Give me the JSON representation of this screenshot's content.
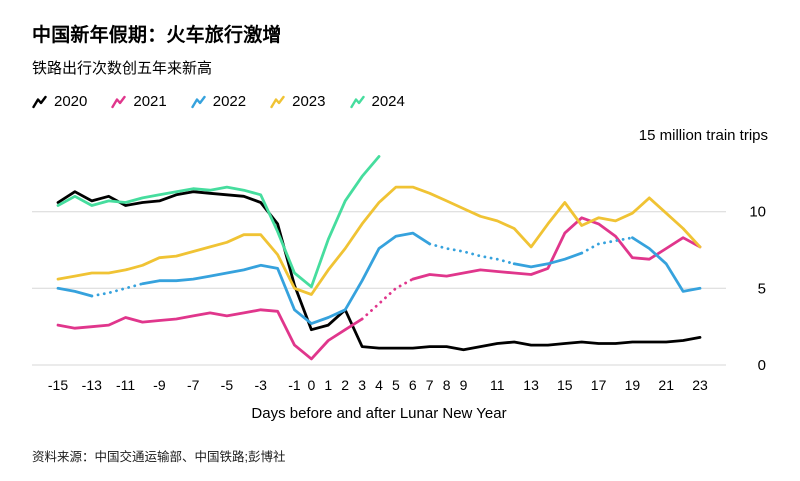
{
  "header": {
    "title": "中国新年假期：火车旅行激增",
    "subtitle": "铁路出行次数创五年来新高"
  },
  "axis_note": "15 million train trips",
  "xaxis_title": "Days before and after Lunar New Year",
  "source": "资料来源：中国交通运输部、中国铁路;彭博社",
  "colors": {
    "grid": "#d7d7d7",
    "s2020": "#000000",
    "s2021": "#e0368c",
    "s2022": "#36a2dd",
    "s2023": "#f0c334",
    "s2024": "#46dd9e"
  },
  "chart_data": {
    "type": "line",
    "title": "中国新年假期：火车旅行激增",
    "subtitle": "铁路出行次数创五年来新高",
    "xlabel": "Days before and after Lunar New Year",
    "ylabel": "million train trips",
    "ylim": [
      0,
      15
    ],
    "yticks": [
      0,
      5,
      10
    ],
    "grid": "horizontal",
    "legend_position": "top",
    "x": [
      -15,
      -14,
      -13,
      -12,
      -11,
      -10,
      -9,
      -8,
      -7,
      -6,
      -5,
      -4,
      -3,
      -2,
      -1,
      0,
      1,
      2,
      3,
      4,
      5,
      6,
      7,
      8,
      9,
      10,
      11,
      12,
      13,
      14,
      15,
      16,
      17,
      18,
      19,
      20,
      21,
      22,
      23
    ],
    "xticks": [
      -15,
      -13,
      -11,
      -9,
      -7,
      -5,
      -3,
      -1,
      0,
      1,
      2,
      3,
      4,
      5,
      6,
      7,
      8,
      9,
      11,
      13,
      15,
      17,
      19,
      21,
      23
    ],
    "series": [
      {
        "name": "2020",
        "color": "#000000",
        "values": [
          10.6,
          11.3,
          10.7,
          11.0,
          10.4,
          10.6,
          10.7,
          11.1,
          11.3,
          11.2,
          11.1,
          11.0,
          10.6,
          9.2,
          5.2,
          2.3,
          2.6,
          3.6,
          1.2,
          1.1,
          1.1,
          1.1,
          1.2,
          1.2,
          1.0,
          1.2,
          1.4,
          1.5,
          1.3,
          1.3,
          1.4,
          1.5,
          1.4,
          1.4,
          1.5,
          1.5,
          1.5,
          1.6,
          1.8
        ]
      },
      {
        "name": "2021",
        "color": "#e0368c",
        "values": [
          2.6,
          2.4,
          2.5,
          2.6,
          3.1,
          2.8,
          2.9,
          3.0,
          3.2,
          3.4,
          3.2,
          3.4,
          3.6,
          3.5,
          1.3,
          0.4,
          1.6,
          2.3,
          3.0,
          4.0,
          5.0,
          5.6,
          5.9,
          5.8,
          6.0,
          6.2,
          6.1,
          6.0,
          5.9,
          6.3,
          8.6,
          9.6,
          9.2,
          8.4,
          7.0,
          6.9,
          7.6,
          8.3,
          7.7
        ],
        "dashed_x_ranges": [
          [
            3,
            6
          ]
        ]
      },
      {
        "name": "2022",
        "color": "#36a2dd",
        "values": [
          5.0,
          4.8,
          4.5,
          4.7,
          5.0,
          5.3,
          5.5,
          5.5,
          5.6,
          5.8,
          6.0,
          6.2,
          6.5,
          6.3,
          3.6,
          2.7,
          3.1,
          3.6,
          5.5,
          7.6,
          8.4,
          8.6,
          7.9,
          7.6,
          7.4,
          7.1,
          6.9,
          6.6,
          6.4,
          6.6,
          6.9,
          7.3,
          7.9,
          8.1,
          8.3,
          7.6,
          6.6,
          4.8,
          5.0
        ],
        "dashed_x_ranges": [
          [
            -13,
            -10
          ],
          [
            7,
            12
          ],
          [
            16,
            19
          ]
        ]
      },
      {
        "name": "2023",
        "color": "#f0c334",
        "values": [
          5.6,
          5.8,
          6.0,
          6.0,
          6.2,
          6.5,
          7.0,
          7.1,
          7.4,
          7.7,
          8.0,
          8.5,
          8.5,
          7.2,
          5.0,
          4.6,
          6.2,
          7.6,
          9.2,
          10.6,
          11.6,
          11.6,
          11.2,
          10.7,
          10.2,
          9.7,
          9.4,
          8.9,
          7.7,
          9.2,
          10.6,
          9.1,
          9.6,
          9.4,
          9.9,
          10.9,
          9.9,
          8.9,
          7.7
        ]
      },
      {
        "name": "2024",
        "color": "#46dd9e",
        "values": [
          10.4,
          11.0,
          10.4,
          10.7,
          10.6,
          10.9,
          11.1,
          11.3,
          11.5,
          11.4,
          11.6,
          11.4,
          11.1,
          8.7,
          6.0,
          5.1,
          8.2,
          10.7,
          12.3,
          13.6,
          null,
          null,
          null,
          null,
          null,
          null,
          null,
          null,
          null,
          null,
          null,
          null,
          null,
          null,
          null,
          null,
          null,
          null,
          null
        ]
      }
    ]
  }
}
